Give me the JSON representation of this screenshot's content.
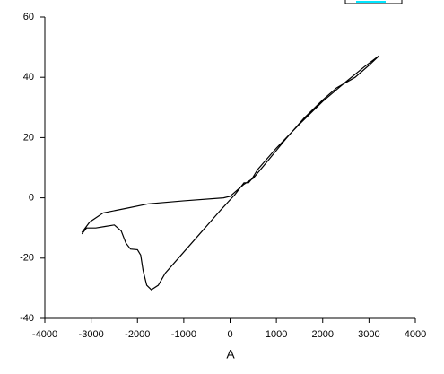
{
  "chart_data": {
    "type": "line",
    "x_label": "A",
    "x": [
      -3200,
      -3030,
      -2740,
      -2250,
      -1770,
      -1000,
      -140,
      0,
      150,
      300,
      500,
      800,
      1200,
      1600,
      2000,
      2300,
      2700,
      3000,
      3220,
      2900,
      2500,
      2000,
      1500,
      1000,
      600,
      480,
      400,
      300,
      100,
      -200,
      -600,
      -1000,
      -1400,
      -1550,
      -1700,
      -1800,
      -1880,
      -1930,
      -2000,
      -2150,
      -2250,
      -2350,
      -2500,
      -2700,
      -2900,
      -3100,
      -3200
    ],
    "series": [
      {
        "color": "#000000",
        "values": [
          -11.5,
          -8,
          -5,
          -3.5,
          -2,
          -1,
          0,
          0.5,
          2.5,
          4.5,
          6.5,
          12,
          19.5,
          26.5,
          32.5,
          36.5,
          40,
          44,
          47.2,
          43.5,
          38.5,
          32,
          24.5,
          16.5,
          9.5,
          6.5,
          5,
          5,
          1,
          -4,
          -11,
          -18,
          -25,
          -29,
          -30.5,
          -29,
          -24,
          -19,
          -17.2,
          -17,
          -15,
          -11,
          -9,
          -9.5,
          -10,
          -10,
          -12
        ]
      }
    ],
    "xlim": [
      -4000,
      4000
    ],
    "xticks": [
      -4000,
      -3000,
      -2000,
      -1000,
      0,
      1000,
      2000,
      3000,
      4000
    ],
    "ylim": [
      -40,
      60
    ],
    "yticks": [
      -40,
      -20,
      0,
      20,
      40,
      60
    ]
  }
}
